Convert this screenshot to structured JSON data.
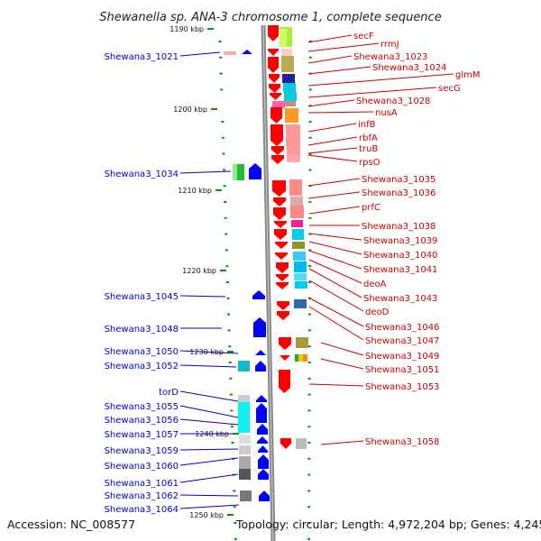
{
  "title": "Shewanella sp. ANA-3 chromosome 1, complete sequence",
  "footer": {
    "accession": "Accession: NC_008577",
    "summary": "Topology: circular; Length: 4,972,204 bp; Genes: 4,245"
  },
  "kbp_labels": [
    "1190 kbp",
    "1200 kbp",
    "1210 kbp",
    "1220 kbp",
    "1230 kbp",
    "1240 kbp",
    "1250 kbp"
  ],
  "right_labels": [
    "secF",
    "rrmJ",
    "Shewana3_1023",
    "Shewana3_1024",
    "glmM",
    "secG",
    "Shewana3_1028",
    "nusA",
    "infB",
    "rbfA",
    "truB",
    "rpsO",
    "Shewana3_1035",
    "Shewana3_1036",
    "prfC",
    "Shewana3_1038",
    "Shewana3_1039",
    "Shewana3_1040",
    "Shewana3_1041",
    "deoA",
    "Shewana3_1043",
    "deoD",
    "Shewana3_1046",
    "Shewana3_1047",
    "Shewana3_1049",
    "Shewana3_1051",
    "Shewana3_1053",
    "Shewana3_1058"
  ],
  "left_labels": [
    "Shewana3_1021",
    "Shewana3_1034",
    "Shewana3_1045",
    "Shewana3_1048",
    "Shewana3_1050",
    "Shewana3_1052",
    "torD",
    "Shewana3_1055",
    "Shewana3_1056",
    "Shewana3_1057",
    "Shewana3_1059",
    "Shewana3_1060",
    "Shewana3_1061",
    "Shewana3_1062",
    "Shewana3_1064"
  ],
  "colors": {
    "label_red": "#cc0000",
    "label_blue": "#0000cc",
    "feature_red": "#ff0000",
    "feature_blue": "#0000ff",
    "backbone": "#888888",
    "tick": "#009900"
  }
}
